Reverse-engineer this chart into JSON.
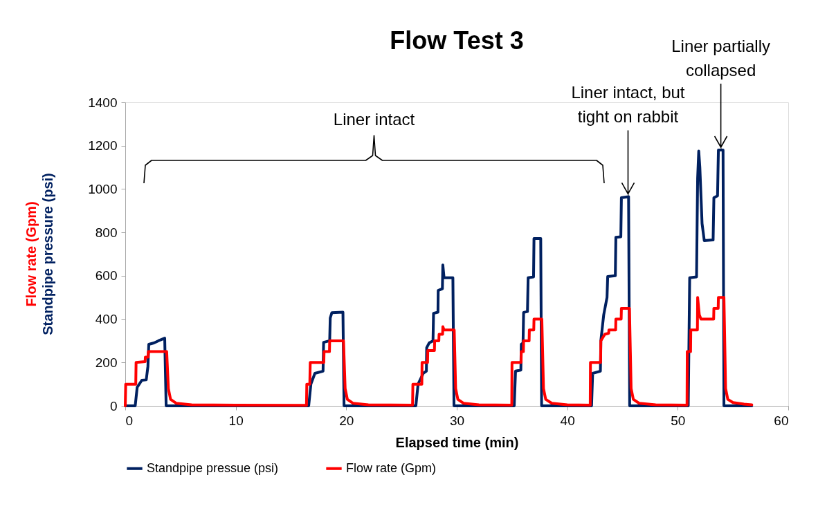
{
  "chart_data": {
    "type": "line",
    "title": "Flow Test 3",
    "xlabel": "Elapsed time (min)",
    "ylabel": [
      "Flow rate (Gpm)",
      "Standpipe pressure (psi)"
    ],
    "xlim": [
      0,
      60
    ],
    "xticks": [
      0,
      10,
      20,
      30,
      40,
      50,
      60
    ],
    "ylim": [
      0,
      1400
    ],
    "yticks": [
      0,
      200,
      400,
      600,
      800,
      1000,
      1200,
      1400
    ],
    "legend": "bottom",
    "line_style": "solid",
    "annotations": [
      "Liner intact",
      {
        "text": "Liner intact, but tight on rabbit",
        "x": 45.5,
        "y": 965
      },
      {
        "text": "Liner partially collapsed",
        "x": 53.9,
        "y": 1180
      }
    ],
    "series": [
      {
        "name": "Standpipe pressue (psi)",
        "color": "#002060",
        "x": [
          0,
          0.9,
          1.08,
          1.5,
          1.9,
          2.05,
          2.13,
          2.6,
          3.0,
          3.57,
          3.7,
          16.6,
          16.8,
          17.16,
          17.9,
          17.95,
          18.5,
          18.55,
          18.7,
          19.7,
          19.8,
          26.3,
          26.5,
          26.97,
          27.25,
          27.28,
          27.5,
          27.85,
          27.9,
          28.3,
          28.32,
          28.7,
          28.74,
          28.85,
          29.65,
          29.75,
          35.2,
          35.32,
          35.8,
          35.84,
          36.0,
          36.05,
          36.4,
          36.46,
          36.95,
          36.99,
          37.6,
          37.68,
          42.2,
          42.3,
          43.0,
          43.04,
          43.3,
          43.6,
          43.66,
          44.35,
          44.4,
          44.85,
          44.9,
          45.55,
          45.65,
          50.95,
          51.08,
          51.7,
          51.8,
          51.9,
          52.0,
          52.2,
          52.4,
          53.2,
          53.27,
          53.6,
          53.68,
          54.1,
          54.18,
          56.7
        ],
        "values": [
          0,
          0,
          86,
          118,
          120,
          182,
          284,
          290,
          300,
          312,
          0,
          0,
          100,
          150,
          160,
          293,
          300,
          405,
          430,
          432,
          0,
          0,
          100,
          150,
          160,
          268,
          290,
          300,
          427,
          432,
          532,
          540,
          650,
          591,
          591,
          0,
          0,
          160,
          165,
          284,
          290,
          431,
          435,
          591,
          595,
          772,
          772,
          0,
          0,
          150,
          160,
          300,
          420,
          500,
          596,
          600,
          777,
          780,
          960,
          965,
          0,
          0,
          591,
          595,
          1050,
          1175,
          1100,
          841,
          762,
          765,
          960,
          969,
          1180,
          1180,
          0,
          0
        ]
      },
      {
        "name": "Flow rate (Gpm)",
        "color": "#ff0000",
        "x": [
          0,
          0.04,
          0.95,
          0.98,
          1.8,
          1.82,
          2.07,
          2.09,
          3.75,
          3.9,
          4.1,
          4.6,
          6,
          10,
          16.4,
          16.43,
          16.7,
          16.74,
          17.97,
          17.99,
          18.48,
          18.5,
          19.75,
          19.9,
          20.1,
          20.6,
          22,
          26,
          26.03,
          26.84,
          26.86,
          27.36,
          27.38,
          27.98,
          28.0,
          28.38,
          28.4,
          28.72,
          28.74,
          28.85,
          29.77,
          29.9,
          30.1,
          30.6,
          32,
          34.98,
          35.0,
          35.82,
          35.84,
          36.03,
          36.05,
          36.55,
          36.57,
          36.97,
          36.99,
          37.7,
          37.85,
          38.05,
          38.6,
          40,
          42.08,
          42.1,
          43.02,
          43.04,
          43.4,
          43.75,
          43.77,
          44.38,
          44.4,
          44.88,
          44.9,
          45.63,
          45.78,
          45.98,
          46.5,
          48,
          50.84,
          50.86,
          51.16,
          51.18,
          51.78,
          51.8,
          51.95,
          52.1,
          53.25,
          53.27,
          53.66,
          53.68,
          54.18,
          54.33,
          54.53,
          55,
          56,
          56.7
        ],
        "values": [
          0,
          100,
          100,
          200,
          204,
          225,
          225,
          250,
          250,
          80,
          30,
          12,
          5,
          3,
          2,
          100,
          100,
          200,
          200,
          250,
          250,
          300,
          300,
          80,
          30,
          12,
          5,
          3,
          100,
          100,
          200,
          200,
          255,
          255,
          300,
          300,
          330,
          330,
          365,
          350,
          350,
          80,
          30,
          12,
          5,
          3,
          200,
          200,
          250,
          250,
          300,
          300,
          350,
          350,
          400,
          400,
          80,
          30,
          12,
          5,
          3,
          200,
          200,
          300,
          330,
          335,
          350,
          350,
          400,
          400,
          450,
          450,
          80,
          30,
          12,
          5,
          3,
          250,
          250,
          350,
          350,
          500,
          420,
          400,
          400,
          450,
          450,
          500,
          500,
          80,
          30,
          15,
          8,
          5
        ]
      }
    ]
  }
}
